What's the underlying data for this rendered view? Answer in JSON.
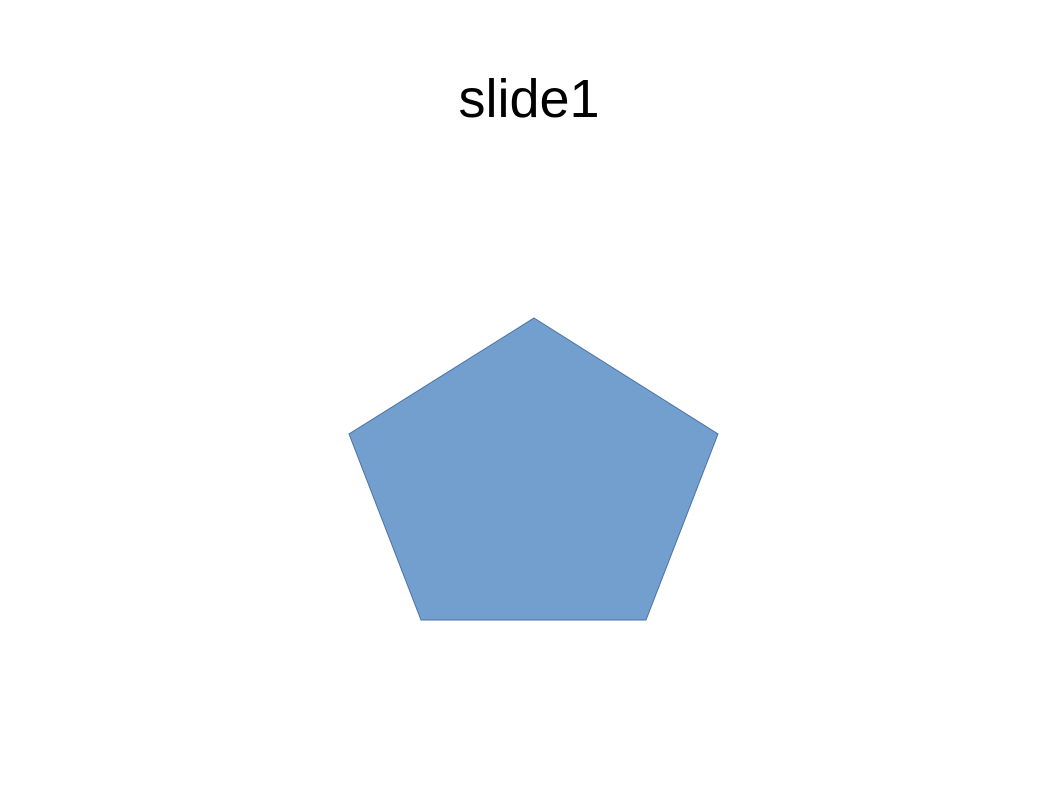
{
  "slide": {
    "title": "slide1"
  },
  "shape": {
    "type": "pentagon",
    "fill_color": "#739fcf",
    "stroke_color": "#4a72a6"
  }
}
